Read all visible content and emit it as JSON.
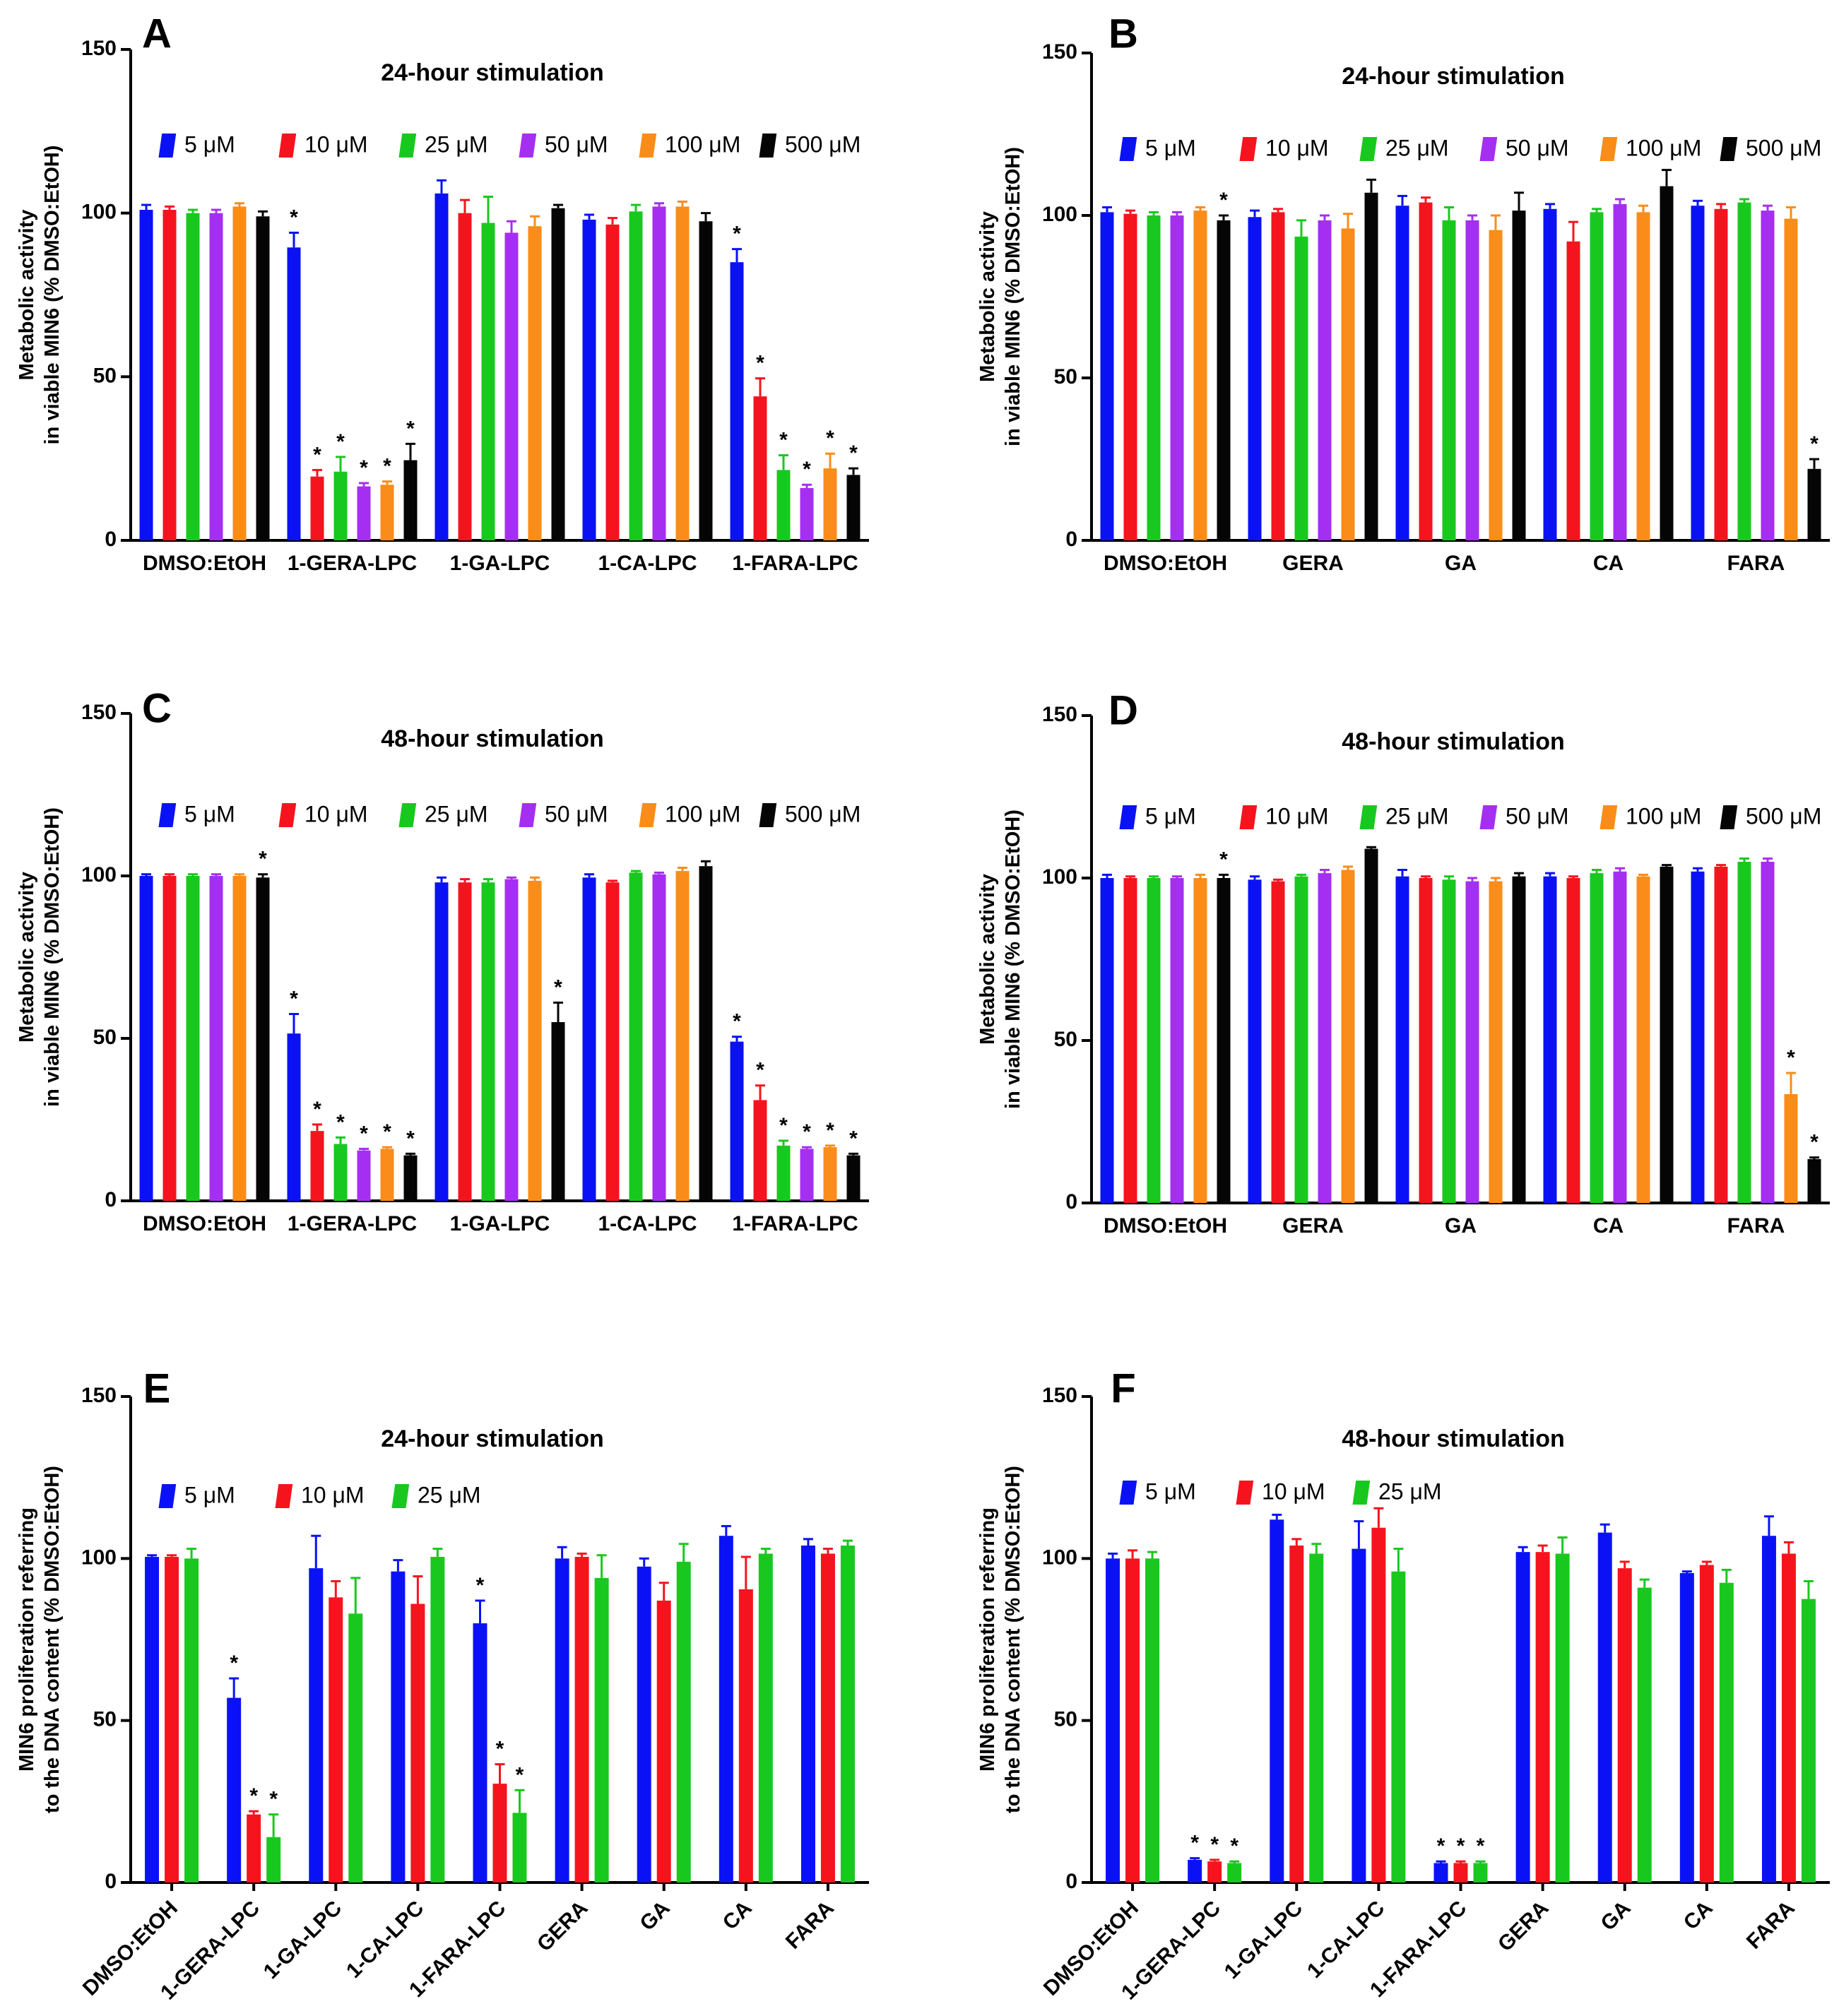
{
  "colors": {
    "5uM": "#0a12f5",
    "10uM": "#f5141e",
    "25uM": "#19c81e",
    "50uM": "#a52ff0",
    "100uM": "#fa8c19",
    "500uM": "#050505"
  },
  "legend_labels_6": [
    "5 μM",
    "10 μM",
    "25 μM",
    "50 μM",
    "100 μM",
    "500 μM"
  ],
  "legend_labels_3": [
    "5 μM",
    "10 μM",
    "25 μM"
  ],
  "chart_data": [
    {
      "id": "A",
      "letter": "A",
      "type": "bar",
      "title": "24-hour stimulation",
      "ylabel": [
        "Metabolic activity",
        "in viable MIN6 (% DMSO:EtOH)"
      ],
      "ylim": [
        0,
        150
      ],
      "yticks": [
        0,
        50,
        100,
        150
      ],
      "categories": [
        "DMSO:EtOH",
        "1-GERA-LPC",
        "1-GA-LPC",
        "1-CA-LPC",
        "1-FARA-LPC"
      ],
      "series": [
        {
          "name": "5 μM",
          "color_key": "5uM",
          "values": [
            101,
            89.5,
            106,
            98,
            85
          ],
          "errors": [
            1.5,
            4.5,
            4,
            1.5,
            4
          ],
          "sig": [
            false,
            true,
            false,
            false,
            true
          ]
        },
        {
          "name": "10 μM",
          "color_key": "10uM",
          "values": [
            101,
            19.5,
            100,
            96.5,
            44
          ],
          "errors": [
            1,
            2,
            4,
            2,
            5.5
          ],
          "sig": [
            false,
            true,
            false,
            false,
            true
          ]
        },
        {
          "name": "25 μM",
          "color_key": "25uM",
          "values": [
            100,
            21,
            97,
            100.5,
            21.5
          ],
          "errors": [
            1,
            4.5,
            8,
            2,
            4.5
          ],
          "sig": [
            false,
            true,
            false,
            false,
            true
          ]
        },
        {
          "name": "50 μM",
          "color_key": "50uM",
          "values": [
            100,
            16.5,
            94,
            102,
            16
          ],
          "errors": [
            1,
            1,
            3.5,
            1,
            1
          ],
          "sig": [
            false,
            true,
            false,
            false,
            true
          ]
        },
        {
          "name": "100 μM",
          "color_key": "100uM",
          "values": [
            102,
            17,
            96,
            102,
            22
          ],
          "errors": [
            1,
            1,
            3,
            1.5,
            4.5
          ],
          "sig": [
            false,
            true,
            false,
            false,
            true
          ]
        },
        {
          "name": "500 μM",
          "color_key": "500uM",
          "values": [
            99,
            24.5,
            101.5,
            97.5,
            20
          ],
          "errors": [
            1.5,
            5,
            1,
            2.5,
            2
          ],
          "sig": [
            false,
            true,
            false,
            false,
            true
          ]
        }
      ]
    },
    {
      "id": "B",
      "letter": "B",
      "type": "bar",
      "title": "24-hour stimulation",
      "ylabel": [
        "Metabolic activity",
        "in viable MIN6 (% DMSO:EtOH)"
      ],
      "ylim": [
        0,
        150
      ],
      "yticks": [
        0,
        50,
        100,
        150
      ],
      "categories": [
        "DMSO:EtOH",
        "GERA",
        "GA",
        "CA",
        "FARA"
      ],
      "series": [
        {
          "name": "5 μM",
          "color_key": "5uM",
          "values": [
            101,
            99.5,
            103,
            102,
            103
          ],
          "errors": [
            1.5,
            2,
            3,
            1.5,
            1.5
          ],
          "sig": [
            false,
            false,
            false,
            false,
            false
          ]
        },
        {
          "name": "10 μM",
          "color_key": "10uM",
          "values": [
            100.5,
            101,
            104,
            92,
            102
          ],
          "errors": [
            1,
            1,
            1.5,
            6,
            1.5
          ],
          "sig": [
            false,
            false,
            false,
            false,
            false
          ]
        },
        {
          "name": "25 μM",
          "color_key": "25uM",
          "values": [
            100,
            93.5,
            98.5,
            101,
            104
          ],
          "errors": [
            1,
            5,
            4,
            1,
            1
          ],
          "sig": [
            false,
            false,
            false,
            false,
            false
          ]
        },
        {
          "name": "50 μM",
          "color_key": "50uM",
          "values": [
            100,
            98.5,
            98.5,
            103.5,
            101.5
          ],
          "errors": [
            1,
            1.5,
            1.5,
            1.5,
            1.5
          ],
          "sig": [
            false,
            false,
            false,
            false,
            false
          ]
        },
        {
          "name": "100 μM",
          "color_key": "100uM",
          "values": [
            101.5,
            96,
            95.5,
            101,
            99
          ],
          "errors": [
            1,
            4.5,
            4.5,
            2,
            3.5
          ],
          "sig": [
            false,
            false,
            false,
            false,
            false
          ]
        },
        {
          "name": "500 μM",
          "color_key": "500uM",
          "values": [
            98.5,
            107,
            101.5,
            109,
            22
          ],
          "errors": [
            1.5,
            4,
            5.5,
            5,
            3
          ],
          "sig": [
            true,
            false,
            false,
            false,
            true
          ]
        }
      ]
    },
    {
      "id": "C",
      "letter": "C",
      "type": "bar",
      "title": "48-hour stimulation",
      "ylabel": [
        "Metabolic activity",
        "in viable MIN6 (% DMSO:EtOH)"
      ],
      "ylim": [
        0,
        150
      ],
      "yticks": [
        0,
        50,
        100,
        150
      ],
      "categories": [
        "DMSO:EtOH",
        "1-GERA-LPC",
        "1-GA-LPC",
        "1-CA-LPC",
        "1-FARA-LPC"
      ],
      "series": [
        {
          "name": "5 μM",
          "color_key": "5uM",
          "values": [
            100,
            51.5,
            98,
            99.5,
            49
          ],
          "errors": [
            0.5,
            6,
            1.5,
            1,
            1.5
          ],
          "sig": [
            false,
            true,
            false,
            false,
            true
          ]
        },
        {
          "name": "10 μM",
          "color_key": "10uM",
          "values": [
            100,
            21.5,
            98,
            98,
            31
          ],
          "errors": [
            0.5,
            2,
            1,
            0.5,
            4.5
          ],
          "sig": [
            false,
            true,
            false,
            false,
            true
          ]
        },
        {
          "name": "25 μM",
          "color_key": "25uM",
          "values": [
            100,
            17.5,
            98,
            101,
            17
          ],
          "errors": [
            0.5,
            2,
            1,
            0.5,
            1.5
          ],
          "sig": [
            false,
            true,
            false,
            false,
            true
          ]
        },
        {
          "name": "50 μM",
          "color_key": "50uM",
          "values": [
            100,
            15.5,
            99,
            100.5,
            16
          ],
          "errors": [
            0.5,
            0.5,
            0.5,
            0.5,
            0.5
          ],
          "sig": [
            false,
            true,
            false,
            false,
            true
          ]
        },
        {
          "name": "100 μM",
          "color_key": "100uM",
          "values": [
            100,
            16,
            98.5,
            101.5,
            16.5
          ],
          "errors": [
            0.5,
            0.5,
            1,
            1,
            0.5
          ],
          "sig": [
            false,
            true,
            false,
            false,
            true
          ]
        },
        {
          "name": "500 μM",
          "color_key": "500uM",
          "values": [
            99.5,
            14,
            55,
            103,
            14
          ],
          "errors": [
            1,
            0.5,
            6,
            1.5,
            0.5
          ],
          "sig": [
            true,
            true,
            true,
            false,
            true
          ]
        }
      ]
    },
    {
      "id": "D",
      "letter": "D",
      "type": "bar",
      "title": "48-hour stimulation",
      "ylabel": [
        "Metabolic activity",
        "in viable MIN6 (% DMSO:EtOH)"
      ],
      "ylim": [
        0,
        150
      ],
      "yticks": [
        0,
        50,
        100,
        150
      ],
      "categories": [
        "DMSO:EtOH",
        "GERA",
        "GA",
        "CA",
        "FARA"
      ],
      "series": [
        {
          "name": "5 μM",
          "color_key": "5uM",
          "values": [
            100,
            99.5,
            100.5,
            100.5,
            102
          ],
          "errors": [
            1,
            1,
            2,
            1,
            1
          ],
          "sig": [
            false,
            false,
            false,
            false,
            false
          ]
        },
        {
          "name": "10 μM",
          "color_key": "10uM",
          "values": [
            100,
            99,
            100,
            100,
            103.5
          ],
          "errors": [
            0.5,
            0.5,
            0.5,
            0.5,
            0.5
          ],
          "sig": [
            false,
            false,
            false,
            false,
            false
          ]
        },
        {
          "name": "25 μM",
          "color_key": "25uM",
          "values": [
            100,
            100.5,
            99.5,
            101.5,
            105
          ],
          "errors": [
            0.5,
            0.5,
            1,
            1,
            1
          ],
          "sig": [
            false,
            false,
            false,
            false,
            false
          ]
        },
        {
          "name": "50 μM",
          "color_key": "50uM",
          "values": [
            100,
            101.5,
            99,
            102,
            105
          ],
          "errors": [
            0.5,
            1,
            1,
            1,
            1
          ],
          "sig": [
            false,
            false,
            false,
            false,
            false
          ]
        },
        {
          "name": "100 μM",
          "color_key": "100uM",
          "values": [
            100,
            102.5,
            99,
            100.5,
            33.5
          ],
          "errors": [
            1,
            1,
            1,
            0.5,
            6.5
          ],
          "sig": [
            false,
            false,
            false,
            false,
            true
          ]
        },
        {
          "name": "500 μM",
          "color_key": "500uM",
          "values": [
            100,
            109,
            100.5,
            103.5,
            13.5
          ],
          "errors": [
            1,
            0.5,
            1,
            0.5,
            0.5
          ],
          "sig": [
            true,
            false,
            false,
            false,
            true
          ]
        }
      ]
    },
    {
      "id": "E",
      "letter": "E",
      "type": "bar",
      "title": "24-hour stimulation",
      "ylabel": [
        "MIN6 proliferation referring",
        "to the DNA content (% DMSO:EtOH)"
      ],
      "ylim": [
        0,
        150
      ],
      "yticks": [
        0,
        50,
        100,
        150
      ],
      "categories": [
        "DMSO:EtOH",
        "1-GERA-LPC",
        "1-GA-LPC",
        "1-CA-LPC",
        "1-FARA-LPC",
        "GERA",
        "GA",
        "CA",
        "FARA"
      ],
      "series": [
        {
          "name": "5 μM",
          "color_key": "5uM",
          "values": [
            100.5,
            57,
            97,
            96,
            80,
            100,
            97.5,
            107,
            104
          ],
          "errors": [
            0.5,
            6,
            10,
            3.5,
            7,
            3.5,
            2.5,
            3,
            2
          ],
          "sig": [
            false,
            true,
            false,
            false,
            true,
            false,
            false,
            false,
            false
          ]
        },
        {
          "name": "10 μM",
          "color_key": "10uM",
          "values": [
            100.5,
            21,
            88,
            86,
            30.5,
            100.5,
            87,
            90.5,
            101.5
          ],
          "errors": [
            0.5,
            1,
            5,
            8.5,
            6,
            1,
            5.5,
            10,
            1.5
          ],
          "sig": [
            false,
            true,
            false,
            false,
            true,
            false,
            false,
            false,
            false
          ]
        },
        {
          "name": "25 μM",
          "color_key": "25uM",
          "values": [
            100,
            14,
            83,
            100.5,
            21.5,
            94,
            99,
            101.5,
            104
          ],
          "errors": [
            3,
            7,
            11,
            2.5,
            7,
            7,
            5.5,
            1.5,
            1.5
          ],
          "sig": [
            false,
            true,
            false,
            false,
            true,
            false,
            false,
            false,
            false
          ]
        }
      ]
    },
    {
      "id": "F",
      "letter": "F",
      "type": "bar",
      "title": "48-hour stimulation",
      "ylabel": [
        "MIN6 proliferation referring",
        "to the DNA content (% DMSO:EtOH)"
      ],
      "ylim": [
        0,
        150
      ],
      "yticks": [
        0,
        50,
        100,
        150
      ],
      "categories": [
        "DMSO:EtOH",
        "1-GERA-LPC",
        "1-GA-LPC",
        "1-CA-LPC",
        "1-FARA-LPC",
        "GERA",
        "GA",
        "CA",
        "FARA"
      ],
      "series": [
        {
          "name": "5 μM",
          "color_key": "5uM",
          "values": [
            100,
            7,
            112,
            103,
            6,
            102,
            108,
            95.5,
            107
          ],
          "errors": [
            1.5,
            0.5,
            1.5,
            8.5,
            0.5,
            1.5,
            2.5,
            0.5,
            6
          ],
          "sig": [
            false,
            true,
            false,
            false,
            true,
            false,
            false,
            false,
            false
          ]
        },
        {
          "name": "10 μM",
          "color_key": "10uM",
          "values": [
            100,
            6.5,
            104,
            109.5,
            6,
            102,
            97,
            98,
            101.5
          ],
          "errors": [
            2.5,
            0.5,
            2,
            6,
            0.5,
            2,
            2,
            1,
            3.5
          ],
          "sig": [
            false,
            true,
            false,
            false,
            true,
            false,
            false,
            false,
            false
          ]
        },
        {
          "name": "25 μM",
          "color_key": "25uM",
          "values": [
            100,
            6,
            101.5,
            96,
            6,
            101.5,
            91,
            92.5,
            87.5
          ],
          "errors": [
            2,
            0.5,
            3,
            7,
            0.5,
            5,
            2.5,
            4,
            5.5
          ],
          "sig": [
            false,
            true,
            false,
            false,
            true,
            false,
            false,
            false,
            false
          ]
        }
      ]
    }
  ]
}
